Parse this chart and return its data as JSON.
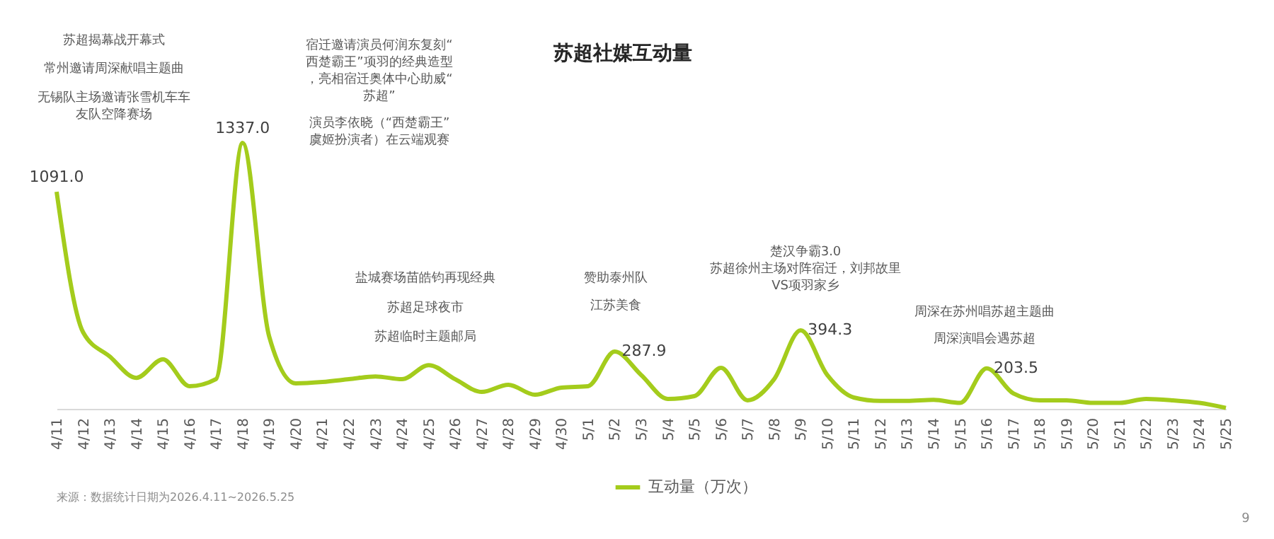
{
  "chart_data": {
    "type": "line",
    "title": "苏超社媒互动量",
    "categories": [
      "4/11",
      "4/12",
      "4/13",
      "4/14",
      "4/15",
      "4/16",
      "4/17",
      "4/18",
      "4/19",
      "4/20",
      "4/21",
      "4/22",
      "4/23",
      "4/24",
      "4/25",
      "4/26",
      "4/27",
      "4/28",
      "4/29",
      "4/30",
      "5/1",
      "5/2",
      "5/3",
      "5/4",
      "5/5",
      "5/6",
      "5/7",
      "5/8",
      "5/9",
      "5/10",
      "5/11",
      "5/12",
      "5/13",
      "5/14",
      "5/15",
      "5/16",
      "5/17",
      "5/18",
      "5/19",
      "5/20",
      "5/21",
      "5/22",
      "5/23",
      "5/24",
      "5/25"
    ],
    "series": [
      {
        "name": "互动量（万次）",
        "color": "#a4cc1c",
        "values": [
          1091.0,
          384,
          263,
          156,
          249,
          114,
          150,
          1337.0,
          363,
          128,
          135,
          149,
          163,
          149,
          220,
          149,
          85,
          121,
          71,
          107,
          114,
          287.9,
          170,
          50,
          64,
          206,
          43,
          149,
          394.3,
          170,
          57,
          40,
          40,
          45,
          30,
          203.5,
          78,
          43,
          43,
          30,
          30,
          50,
          43,
          30,
          5
        ],
        "value_labels": [
          "1091.0",
          null,
          null,
          null,
          null,
          null,
          null,
          "1337.0",
          null,
          null,
          null,
          null,
          null,
          null,
          null,
          null,
          null,
          null,
          null,
          null,
          null,
          "287.9",
          null,
          null,
          null,
          null,
          null,
          null,
          "394.3",
          null,
          null,
          null,
          null,
          null,
          null,
          "203.5",
          null,
          null,
          null,
          null,
          null,
          null,
          null,
          null,
          null
        ]
      }
    ],
    "tick_labels": "x",
    "grid": false,
    "legend": "bottom",
    "annotations": [
      "苏超揭幕战开幕式",
      "常州邀请周深献唱主题曲",
      "无锡队主场邀请张雪机车车友队空降赛场",
      "宿迁邀请演员何润东复刻“西楚霸王”项羽的经典造型，亮相宿迁奥体中心助威“苏超”",
      "演员李依晓（“西楚霸王”虞姬扮演者）在云端观赛",
      "盐城赛场苗皓钧再现经典",
      "苏超足球夜市",
      "苏超临时主题邮局",
      "赞助泰州队",
      "江苏美食",
      "楚汉争霸3.0\n苏超徐州主场对阵宿迁，刘邦故里VS项羽家乡",
      "周深在苏州唱苏超主题曲",
      "周深演唱会遇苏超",
      "来源：数据统计日期为2026.4.11~2026.5.25",
      "9"
    ]
  }
}
